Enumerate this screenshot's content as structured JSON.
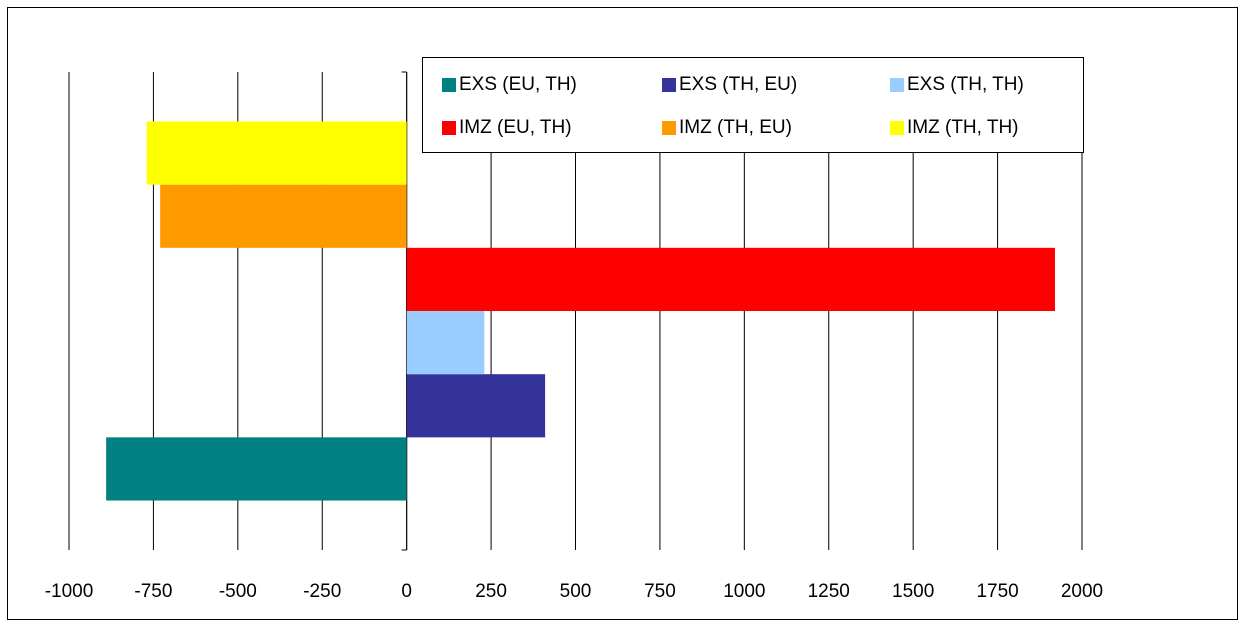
{
  "chart_data": {
    "type": "barh",
    "categories": [
      null
    ],
    "series": [
      {
        "name": "EXS (EU, TH)",
        "color": "#008080",
        "values": [
          -890
        ]
      },
      {
        "name": "EXS (TH, EU)",
        "color": "#333399",
        "values": [
          410
        ]
      },
      {
        "name": "EXS (TH, TH)",
        "color": "#99ccff",
        "values": [
          230
        ]
      },
      {
        "name": "IMZ (EU, TH)",
        "color": "#ff0000",
        "values": [
          1920
        ]
      },
      {
        "name": "IMZ (TH, EU)",
        "color": "#ff9900",
        "values": [
          -730
        ]
      },
      {
        "name": "IMZ (TH, TH)",
        "color": "#ffff00",
        "values": [
          -770
        ]
      }
    ],
    "xlim": [
      -1000,
      2000
    ],
    "xticks": [
      -1000,
      -750,
      -500,
      -250,
      0,
      250,
      500,
      750,
      1000,
      1250,
      1500,
      1750,
      2000
    ],
    "grid": true,
    "legend": "top-right"
  }
}
